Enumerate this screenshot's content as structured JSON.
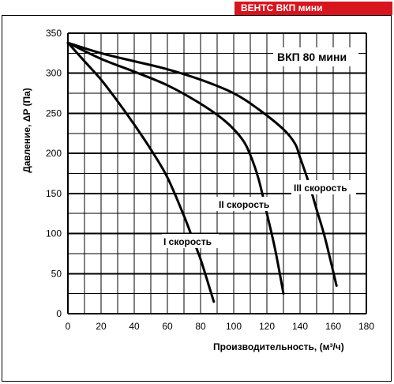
{
  "brand_tag": "ВЕНТС ВКП мини",
  "colors": {
    "brand": "#d6151e",
    "grid": "#000000",
    "curve": "#000000"
  },
  "chart_data": {
    "type": "line",
    "title": "ВКП 80 мини",
    "xlabel": "Производительность, (м³/ч)",
    "ylabel": "Давление, ΔP (Па)",
    "xlim": [
      0,
      180
    ],
    "ylim": [
      0,
      350
    ],
    "xticks": [
      0,
      20,
      40,
      60,
      80,
      100,
      120,
      140,
      160,
      180
    ],
    "yticks": [
      0,
      50,
      100,
      150,
      200,
      250,
      300,
      350
    ],
    "xtick_labels": [
      "0",
      "20",
      "40",
      "60",
      "80",
      "100",
      "120",
      "140",
      "160",
      "180"
    ],
    "ytick_labels": [
      "0",
      "50",
      "100",
      "150",
      "200",
      "250",
      "300",
      "350"
    ],
    "grid": true,
    "series": [
      {
        "name": "I скорость",
        "x": [
          0,
          10,
          20,
          30,
          40,
          50,
          60,
          70,
          75,
          80,
          85,
          88
        ],
        "y": [
          338,
          315,
          292,
          265,
          236,
          205,
          170,
          122,
          95,
          68,
          35,
          15
        ]
      },
      {
        "name": "II скорость",
        "x": [
          0,
          20,
          40,
          60,
          80,
          95,
          105,
          110,
          115,
          120,
          125,
          130
        ],
        "y": [
          338,
          318,
          302,
          285,
          262,
          240,
          218,
          198,
          168,
          125,
          80,
          25
        ]
      },
      {
        "name": "III скорость",
        "x": [
          0,
          20,
          40,
          60,
          80,
          100,
          115,
          130,
          137,
          140,
          145,
          150,
          155,
          162
        ],
        "y": [
          338,
          325,
          315,
          305,
          292,
          275,
          255,
          230,
          212,
          195,
          165,
          130,
          95,
          35
        ]
      }
    ]
  }
}
